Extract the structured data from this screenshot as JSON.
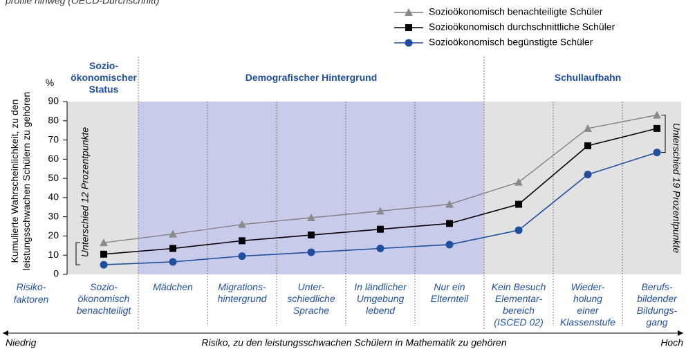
{
  "chart_data": {
    "type": "line",
    "subtitle": "profile hinweg (OECD-Durchschnitt)",
    "y_unit": "%",
    "ylabel": [
      "Kumulierte Wahrscheinlichkeit, zu den",
      "leistungsschwachen Schülern zu gehören"
    ],
    "row_header": [
      "Risiko-",
      "faktoren"
    ],
    "groups": [
      {
        "label": [
          "Sozio-",
          "ökonomischer",
          "Status"
        ]
      },
      {
        "label": [
          "Demografischer Hintergrund"
        ]
      },
      {
        "label": [
          "Schullaufbahn"
        ]
      }
    ],
    "categories": [
      [
        "Sozio-",
        "ökonomisch",
        "benachteiligt"
      ],
      [
        "Mädchen"
      ],
      [
        "Migrations-",
        "hintergrund"
      ],
      [
        "Unter-",
        "schiedliche",
        "Sprache"
      ],
      [
        "In ländlicher",
        "Umgebung",
        "lebend"
      ],
      [
        "Nur ein",
        "Elternteil"
      ],
      [
        "Kein Besuch",
        "Elementar-",
        "bereich",
        "(ISCED 02)"
      ],
      [
        "Wieder-",
        "holung",
        "einer",
        "Klassenstufe"
      ],
      [
        "Berufs-",
        "bildender",
        "Bildungs-",
        "gang"
      ]
    ],
    "series": [
      {
        "name": "Sozioökonomisch benachteiligte Schüler",
        "color": "#7a7a7a",
        "marker": "triangle",
        "values": [
          16.5,
          21,
          26,
          29.5,
          33,
          36.5,
          48,
          76,
          83
        ]
      },
      {
        "name": "Sozioökonomisch durchschnittliche Schüler",
        "color": "#000000",
        "marker": "square",
        "values": [
          10.5,
          13.5,
          17.5,
          20.5,
          23.5,
          26.5,
          36.5,
          67,
          76
        ]
      },
      {
        "name": "Sozioökonomisch begünstigte Schüler",
        "color": "#1f4e9e",
        "marker": "circle",
        "values": [
          5,
          6.5,
          9.5,
          11.5,
          13.5,
          15.5,
          23,
          52,
          63.5
        ]
      }
    ],
    "annotations": [
      "Unterschied 12 Prozentpunkte",
      "Unterschied 19 Prozentpunkte"
    ],
    "xlabel": {
      "low": "Niedrig",
      "center": "Risiko, zu den leistungsschwachen Schülern in Mathematik zu gehören",
      "high": "Hoch"
    },
    "ylim": [
      0,
      90
    ],
    "yticks": [
      0,
      10,
      20,
      30,
      40,
      50,
      60,
      70,
      80,
      90
    ],
    "grid": true
  }
}
